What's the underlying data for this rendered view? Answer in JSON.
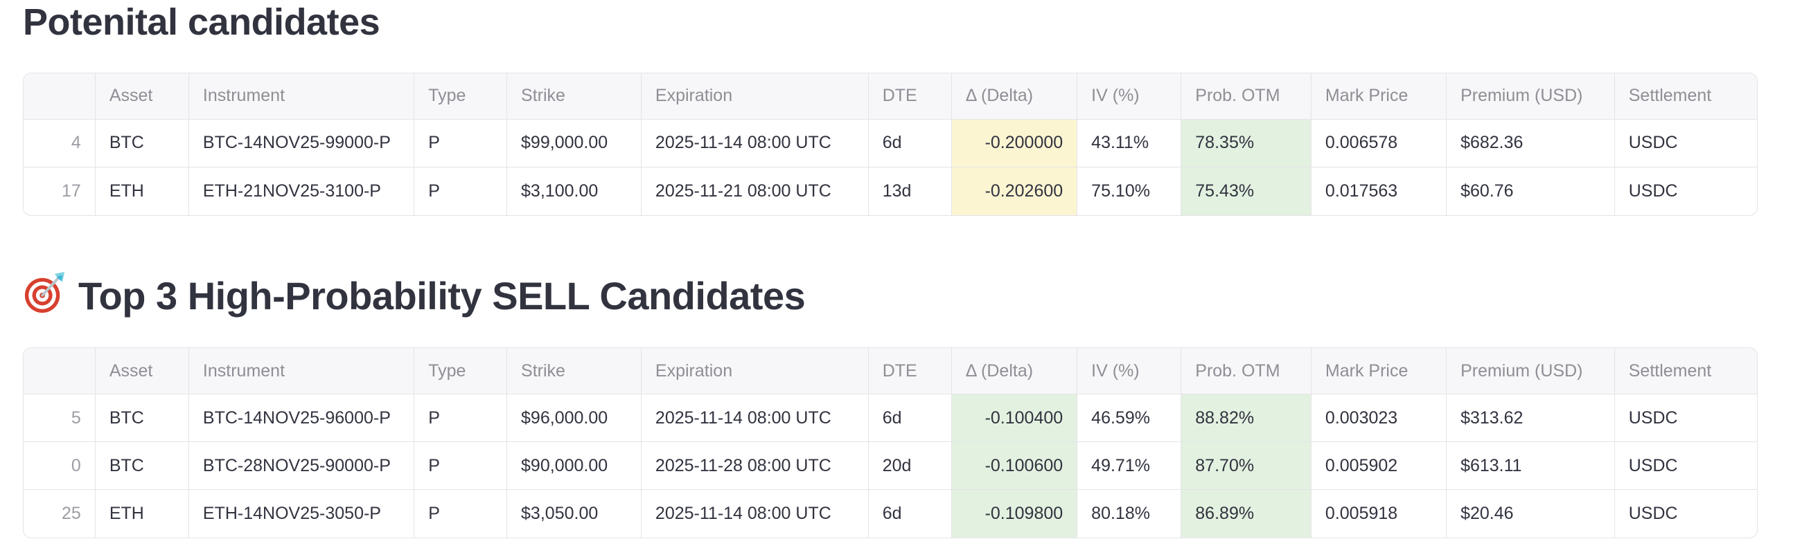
{
  "sections": [
    {
      "id": "potential-candidates",
      "title": "Potenital candidates"
    },
    {
      "id": "top3-sell-candidates",
      "emoji": "🎯",
      "title": "Top 3 High-Probability SELL Candidates"
    }
  ],
  "table_columns": [
    "",
    "Asset",
    "Instrument",
    "Type",
    "Strike",
    "Expiration",
    "DTE",
    "Δ (Delta)",
    "IV (%)",
    "Prob. OTM",
    "Mark Price",
    "Premium (USD)",
    "Settlement"
  ],
  "tables": [
    {
      "name": "potential-candidates",
      "rows": [
        {
          "cells": [
            "4",
            "BTC",
            "BTC-14NOV25-99000-P",
            "P",
            "$99,000.00",
            "2025-11-14 08:00 UTC",
            "6d",
            "-0.200000",
            "43.11%",
            "78.35%",
            "0.006578",
            "$682.36",
            "USDC"
          ],
          "highlights": {
            "7": "yellow",
            "9": "green"
          }
        },
        {
          "cells": [
            "17",
            "ETH",
            "ETH-21NOV25-3100-P",
            "P",
            "$3,100.00",
            "2025-11-21 08:00 UTC",
            "13d",
            "-0.202600",
            "75.10%",
            "75.43%",
            "0.017563",
            "$60.76",
            "USDC"
          ],
          "highlights": {
            "7": "yellow",
            "9": "green"
          }
        }
      ]
    },
    {
      "name": "top3-sell-candidates",
      "rows": [
        {
          "cells": [
            "5",
            "BTC",
            "BTC-14NOV25-96000-P",
            "P",
            "$96,000.00",
            "2025-11-14 08:00 UTC",
            "6d",
            "-0.100400",
            "46.59%",
            "88.82%",
            "0.003023",
            "$313.62",
            "USDC"
          ],
          "highlights": {
            "7": "green",
            "9": "green"
          }
        },
        {
          "cells": [
            "0",
            "BTC",
            "BTC-28NOV25-90000-P",
            "P",
            "$90,000.00",
            "2025-11-28 08:00 UTC",
            "20d",
            "-0.100600",
            "49.71%",
            "87.70%",
            "0.005902",
            "$613.11",
            "USDC"
          ],
          "highlights": {
            "7": "green",
            "9": "green"
          }
        },
        {
          "cells": [
            "25",
            "ETH",
            "ETH-14NOV25-3050-P",
            "P",
            "$3,050.00",
            "2025-11-14 08:00 UTC",
            "6d",
            "-0.109800",
            "80.18%",
            "86.89%",
            "0.005918",
            "$20.46",
            "USDC"
          ],
          "highlights": {
            "7": "green",
            "9": "green"
          }
        }
      ]
    }
  ],
  "colors": {
    "page_bg": "#ffffff",
    "heading_text": "#31333f",
    "body_text": "#31333f",
    "header_text": "#8e8e96",
    "index_text": "#9c9ca4",
    "border": "#e4e4e8",
    "header_bg": "#f7f7f9",
    "highlight_yellow": "#fbf5d2",
    "highlight_green": "#e3f1e0"
  }
}
